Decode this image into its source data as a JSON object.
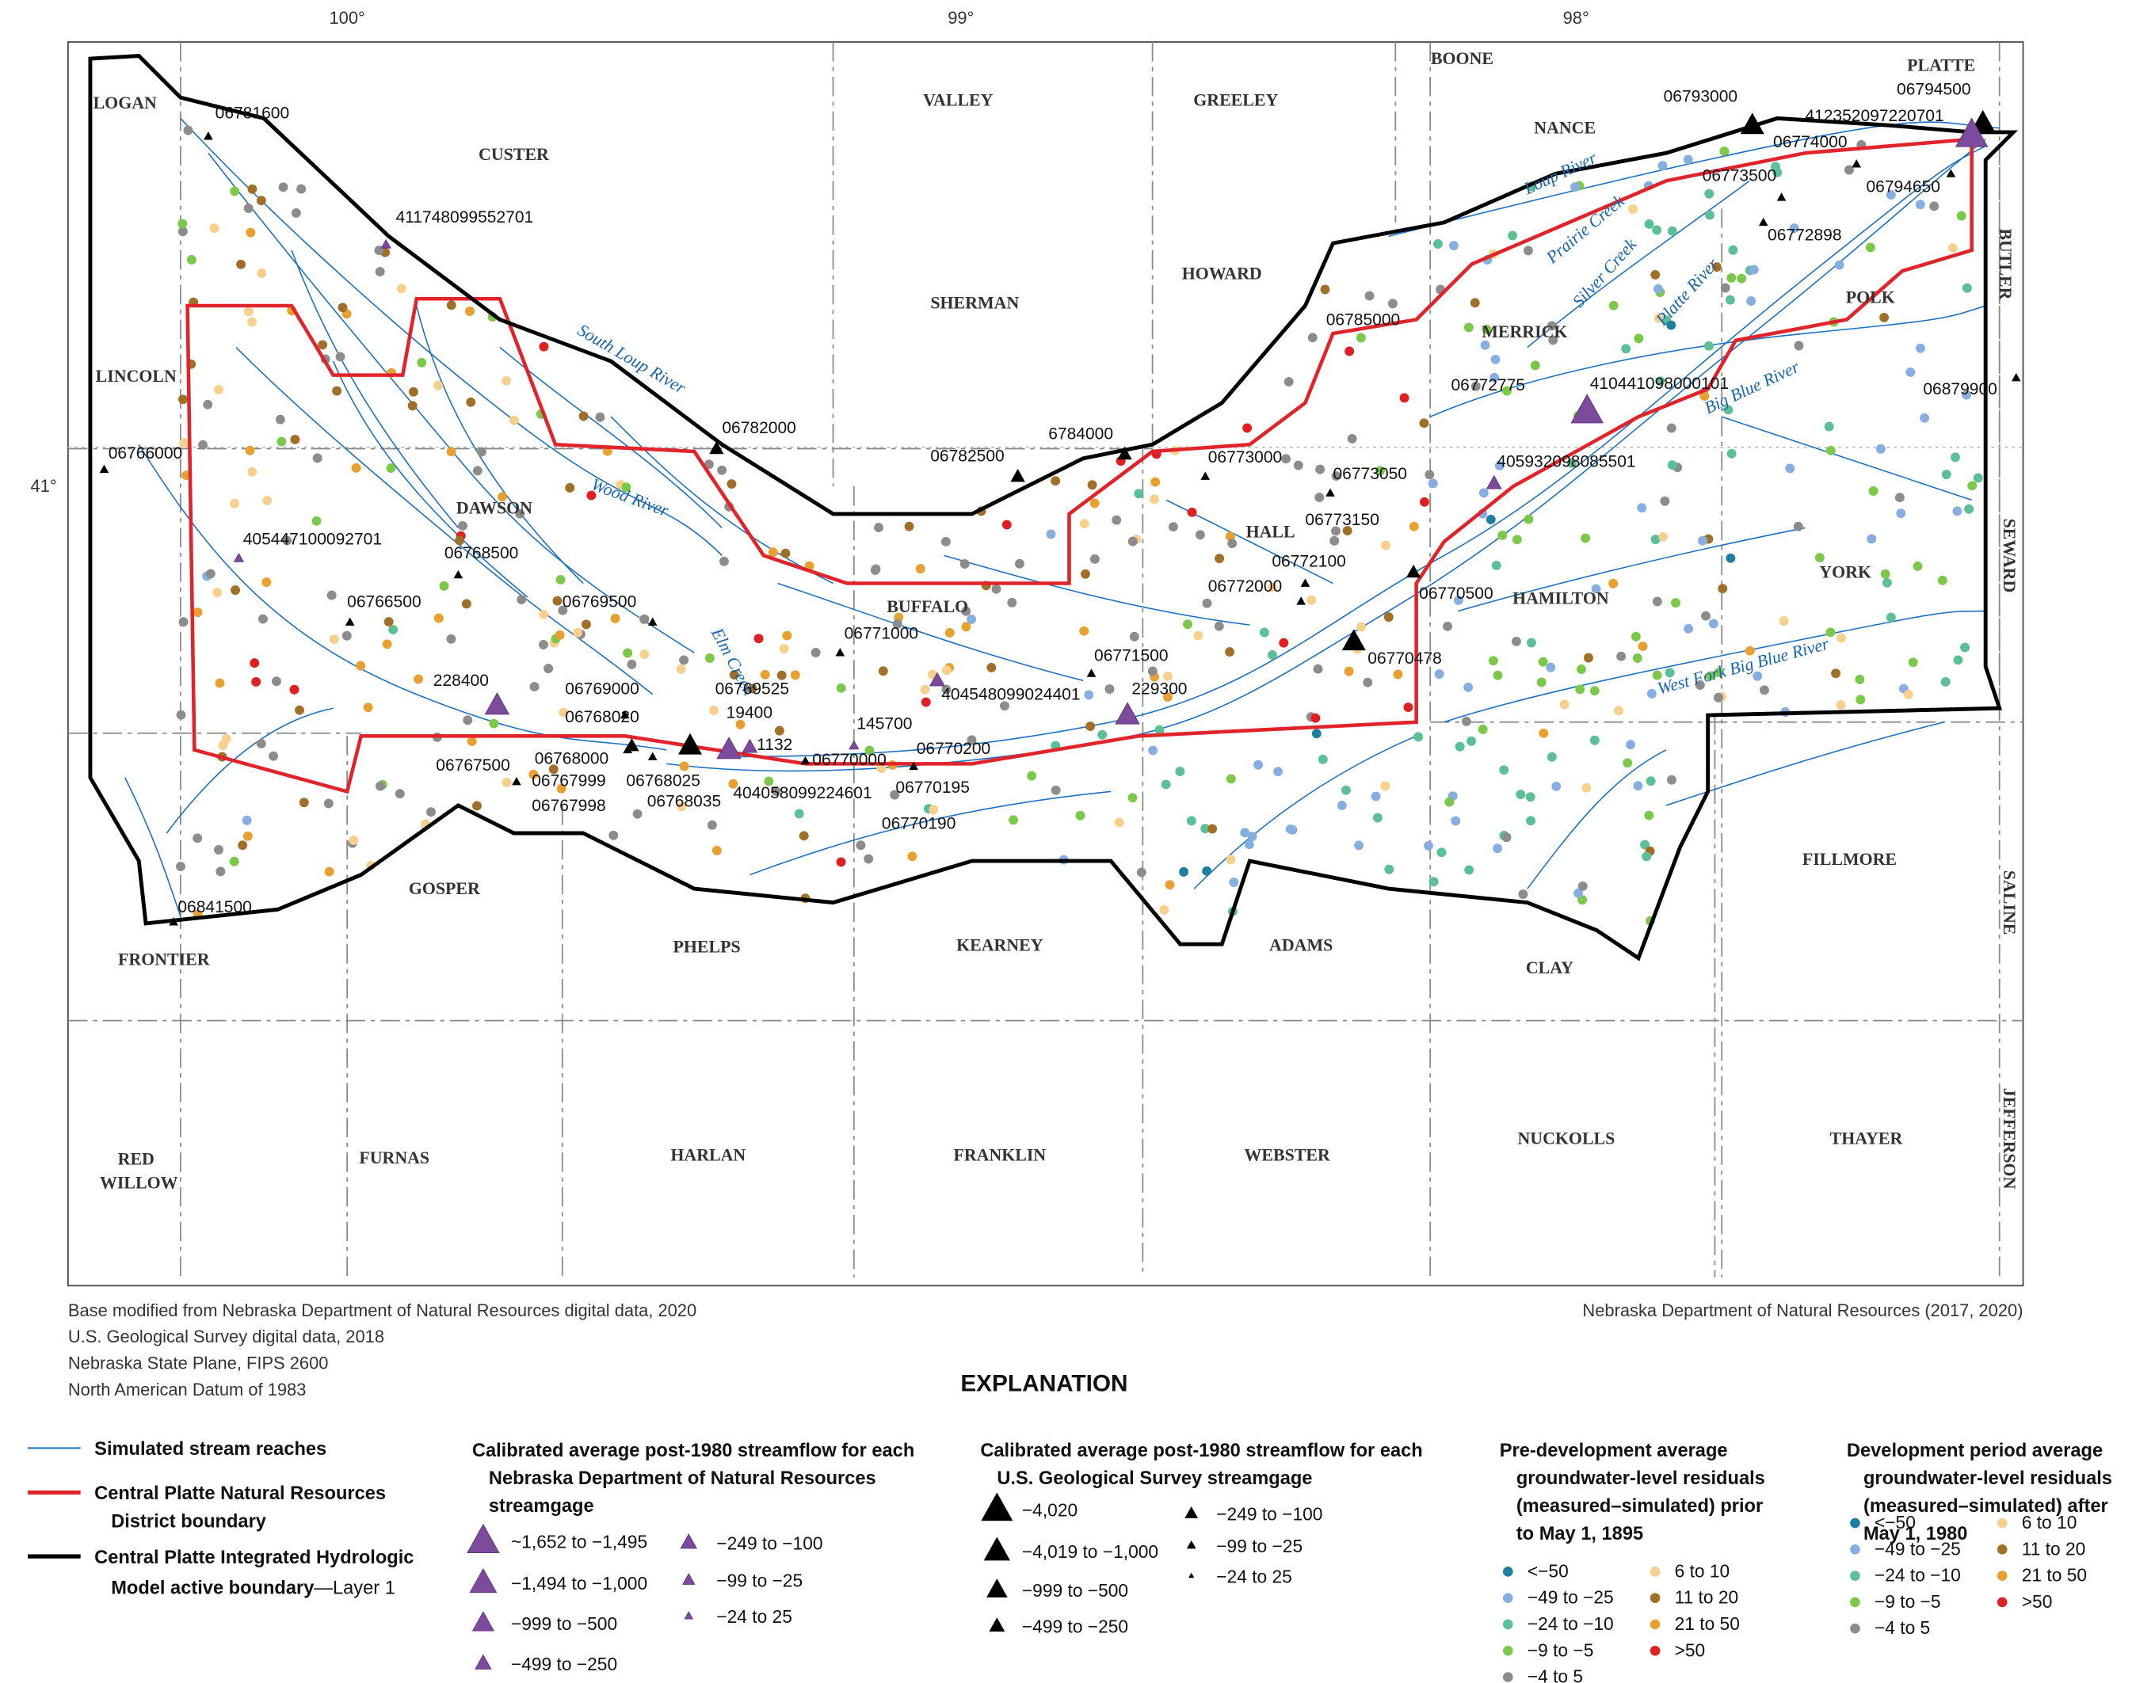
{
  "map": {
    "longitudes": [
      "100°",
      "99°",
      "98°"
    ],
    "latitude": "41°",
    "counties": [
      "LOGAN",
      "CUSTER",
      "VALLEY",
      "GREELEY",
      "BOONE",
      "PLATTE",
      "NANCE",
      "SHERMAN",
      "HOWARD",
      "LINCOLN",
      "MERRICK",
      "POLK",
      "BUTLER",
      "DAWSON",
      "BUFFALO",
      "HALL",
      "HAMILTON",
      "YORK",
      "SEWARD",
      "FRONTIER",
      "GOSPER",
      "PHELPS",
      "KEARNEY",
      "ADAMS",
      "CLAY",
      "FILLMORE",
      "SALINE",
      "RED",
      "WILLOW",
      "FURNAS",
      "HARLAN",
      "FRANKLIN",
      "WEBSTER",
      "NUCKOLLS",
      "THAYER",
      "JEFFERSON"
    ],
    "rivers": [
      "South Loup River",
      "Wood River",
      "Elm Creek",
      "Loup River",
      "Prairie Creek",
      "Silver Creek",
      "Platte River",
      "Big Blue River",
      "West Fork Big Blue River"
    ],
    "gages": [
      "06781600",
      "411748099552701",
      "06766000",
      "405447100092701",
      "06768500",
      "06766500",
      "06769500",
      "228400",
      "06769000",
      "06768020",
      "06767500",
      "06768000",
      "06767999",
      "06767998",
      "06768035",
      "06768025",
      "19400",
      "1132",
      "06769525",
      "145700",
      "06770000",
      "404058099224601",
      "06770200",
      "06770195",
      "06770190",
      "06771000",
      "404548099024401",
      "06771500",
      "229300",
      "06782000",
      "06782500",
      "6784000",
      "06773000",
      "06773050",
      "06773150",
      "06772100",
      "06772000",
      "06770500",
      "06770478",
      "06785000",
      "06772775",
      "410441098000101",
      "405932098085501",
      "06793000",
      "06794500",
      "412352097220701",
      "06774000",
      "06773500",
      "06794650",
      "06772898",
      "06879900",
      "06841500"
    ]
  },
  "credits": {
    "left": [
      "Base modified from Nebraska Department of Natural Resources digital data, 2020",
      "U.S. Geological Survey digital data, 2018",
      "Nebraska State Plane, FIPS 2600",
      "North American Datum of 1983"
    ],
    "right": "Nebraska Department of Natural Resources (2017, 2020)"
  },
  "legend": {
    "title": "EXPLANATION",
    "lines": {
      "streams": "Simulated stream reaches",
      "district": [
        "Central Platte Natural Resources",
        "District boundary"
      ],
      "model": [
        "Central Platte Integrated Hydrologic",
        "Model active boundary",
        "—Layer 1"
      ]
    },
    "ndnr": {
      "title": [
        "Calibrated average post-1980 streamflow for each",
        "Nebraska Department of Natural Resources",
        "streamgage"
      ],
      "items": [
        "~1,652 to −1,495",
        "−1,494 to −1,000",
        "−999 to −500",
        "−499 to −250",
        "−249 to −100",
        "−99 to −25",
        "−24 to 25"
      ],
      "color": "#7d4b9c"
    },
    "usgs": {
      "title": [
        "Calibrated average post-1980 streamflow for each",
        "U.S. Geological Survey streamgage"
      ],
      "items": [
        "−4,020",
        "−4,019 to −1,000",
        "−999 to −500",
        "−499 to −250",
        "−249 to −100",
        "−99 to −25",
        "−24 to 25"
      ],
      "color": "#000000"
    },
    "predevelopment": {
      "title": [
        "Pre-development average",
        "groundwater-level residuals",
        "(measured–simulated) prior",
        "to May 1, 1895"
      ],
      "items": [
        {
          "label": "<−50",
          "color": "#1f7fa0"
        },
        {
          "label": "−49 to −25",
          "color": "#86aee0"
        },
        {
          "label": "−24 to −10",
          "color": "#5cc096"
        },
        {
          "label": "−9 to −5",
          "color": "#7cc84a"
        },
        {
          "label": "−4 to 5",
          "color": "#8c8c8c"
        },
        {
          "label": "6 to 10",
          "color": "#f8d08e"
        },
        {
          "label": "11 to 20",
          "color": "#a0702a"
        },
        {
          "label": "21 to 50",
          "color": "#e8a030"
        },
        {
          "label": ">50",
          "color": "#e02020"
        }
      ]
    },
    "development": {
      "title": [
        "Development period average",
        "groundwater-level residuals",
        "(measured–simulated) after",
        "May 1, 1980"
      ],
      "items": [
        {
          "label": "<−50",
          "color": "#1f7fa0"
        },
        {
          "label": "−49 to −25",
          "color": "#86aee0"
        },
        {
          "label": "−24 to −10",
          "color": "#5cc096"
        },
        {
          "label": "−9 to −5",
          "color": "#7cc84a"
        },
        {
          "label": "−4 to 5",
          "color": "#8c8c8c"
        },
        {
          "label": "6 to 10",
          "color": "#f8d08e"
        },
        {
          "label": "11 to 20",
          "color": "#a0702a"
        },
        {
          "label": "21 to 50",
          "color": "#e8a030"
        },
        {
          "label": ">50",
          "color": "#e02020"
        }
      ]
    }
  }
}
